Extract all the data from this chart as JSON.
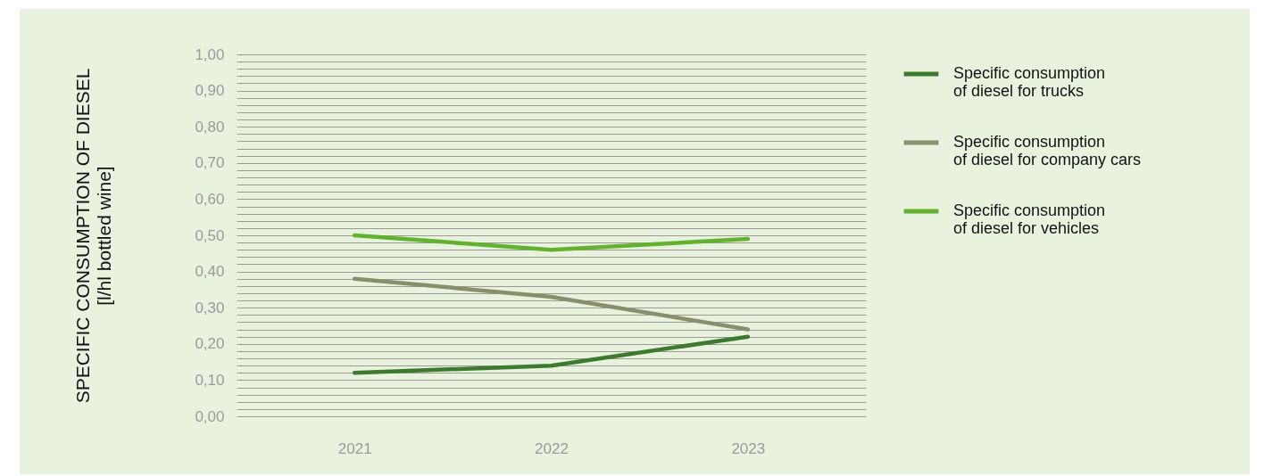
{
  "chart_data": {
    "type": "line",
    "ylabel": "SPECIFIC CONSUMPTION OF DIESEL\n[l/hl bottled wine]",
    "categories": [
      "2021",
      "2022",
      "2023"
    ],
    "series": [
      {
        "name": "Specific consumption of diesel for trucks",
        "color": "#3c7a2e",
        "values": [
          0.12,
          0.14,
          0.22
        ]
      },
      {
        "name": "Specific consumption of diesel for company cars",
        "color": "#87906a",
        "values": [
          0.38,
          0.33,
          0.24
        ]
      },
      {
        "name": "Specific consumption of diesel for vehicles",
        "color": "#63b22f",
        "values": [
          0.5,
          0.46,
          0.49
        ]
      }
    ],
    "ylim": [
      0,
      1
    ],
    "yticks": [
      {
        "value": 0,
        "label": "0,00"
      },
      {
        "value": 0.02,
        "label": null
      },
      {
        "value": 0.04,
        "label": null
      },
      {
        "value": 0.06,
        "label": null
      },
      {
        "value": 0.08,
        "label": null
      },
      {
        "value": 0.1,
        "label": "0,10"
      },
      {
        "value": 0.12,
        "label": null
      },
      {
        "value": 0.14,
        "label": null
      },
      {
        "value": 0.16,
        "label": null
      },
      {
        "value": 0.18,
        "label": null
      },
      {
        "value": 0.2,
        "label": "0,20"
      },
      {
        "value": 0.22,
        "label": null
      },
      {
        "value": 0.24,
        "label": null
      },
      {
        "value": 0.26,
        "label": null
      },
      {
        "value": 0.28,
        "label": null
      },
      {
        "value": 0.3,
        "label": "0,30"
      },
      {
        "value": 0.32,
        "label": null
      },
      {
        "value": 0.34,
        "label": null
      },
      {
        "value": 0.36,
        "label": null
      },
      {
        "value": 0.38,
        "label": null
      },
      {
        "value": 0.4,
        "label": "0,40"
      },
      {
        "value": 0.42,
        "label": null
      },
      {
        "value": 0.44,
        "label": null
      },
      {
        "value": 0.46,
        "label": null
      },
      {
        "value": 0.48,
        "label": null
      },
      {
        "value": 0.5,
        "label": "0,50"
      },
      {
        "value": 0.52,
        "label": null
      },
      {
        "value": 0.54,
        "label": null
      },
      {
        "value": 0.56,
        "label": null
      },
      {
        "value": 0.58,
        "label": null
      },
      {
        "value": 0.6,
        "label": "0,60"
      },
      {
        "value": 0.62,
        "label": null
      },
      {
        "value": 0.64,
        "label": null
      },
      {
        "value": 0.66,
        "label": null
      },
      {
        "value": 0.68,
        "label": null
      },
      {
        "value": 0.7,
        "label": "0,70"
      },
      {
        "value": 0.72,
        "label": null
      },
      {
        "value": 0.74,
        "label": null
      },
      {
        "value": 0.76,
        "label": null
      },
      {
        "value": 0.78,
        "label": null
      },
      {
        "value": 0.8,
        "label": "0,80"
      },
      {
        "value": 0.82,
        "label": null
      },
      {
        "value": 0.84,
        "label": null
      },
      {
        "value": 0.86,
        "label": null
      },
      {
        "value": 0.88,
        "label": null
      },
      {
        "value": 0.9,
        "label": "0,90"
      },
      {
        "value": 0.92,
        "label": null
      },
      {
        "value": 0.94,
        "label": null
      },
      {
        "value": 0.96,
        "label": null
      },
      {
        "value": 0.98,
        "label": null
      },
      {
        "value": 1,
        "label": "1,00"
      }
    ],
    "grid": "y",
    "legend": "right",
    "marker": "none",
    "line_style": "solid"
  }
}
